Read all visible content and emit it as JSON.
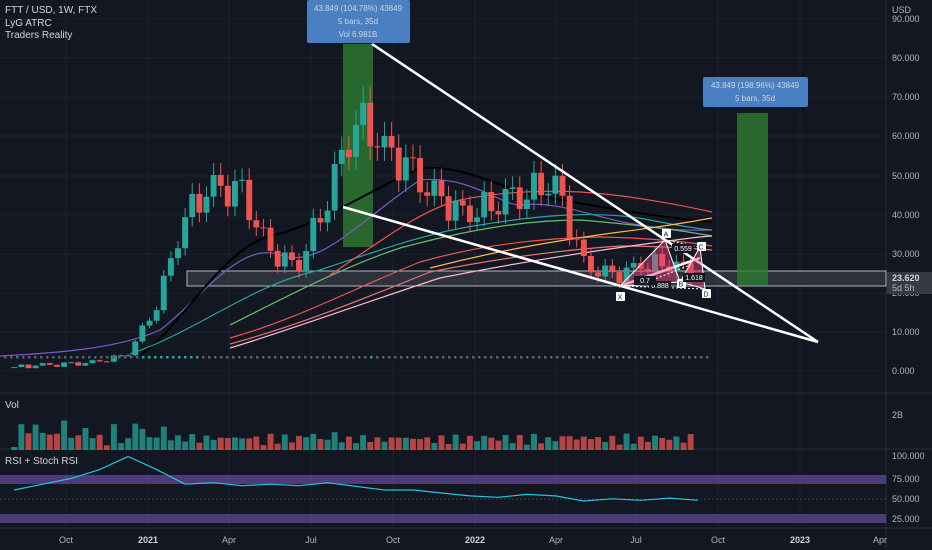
{
  "header": {
    "symbol": "FTT / USD, 1W, FTX",
    "indicators": [
      "LyG ATRC",
      "Traders Reality"
    ],
    "currency": "USD"
  },
  "colors": {
    "bg": "#131722",
    "up": "#26a69a",
    "down": "#ef5350",
    "label_box": "#4a7fc1",
    "measure_fill": "#2e7d32"
  },
  "price_axis": {
    "ticks": [
      "0.000",
      "10.000",
      "20.000",
      "30.000",
      "40.000",
      "50.000",
      "60.000",
      "70.000",
      "80.000",
      "90.000"
    ],
    "last_price": "23.620",
    "countdown": "5d 5h"
  },
  "time_axis": {
    "labels": [
      "Oct",
      "2021",
      "Apr",
      "Jul",
      "Oct",
      "2022",
      "Apr",
      "Jul",
      "Oct",
      "2023",
      "Apr"
    ]
  },
  "measure_left": {
    "line1": "43.849 (104.78%) 43849",
    "line2": "5 bars, 35d",
    "line3": "Vol 6.981B"
  },
  "measure_right": {
    "line1": "43.849 (198.96%) 43849",
    "line2": "5 bars, 35d"
  },
  "pattern": {
    "points": [
      "X",
      "A",
      "B",
      "C",
      "D"
    ],
    "ratios": [
      "0.559",
      "0.888",
      "1.618",
      "0.7"
    ]
  },
  "volume_panel": {
    "label": "Vol",
    "tick": "2B"
  },
  "rsi_panel": {
    "label": "RSI + Stoch RSI",
    "ticks": [
      "100.000",
      "75.000",
      "50.000",
      "25.000"
    ]
  },
  "chart_data": {
    "type": "candlestick",
    "title": "FTT / USD, 1W, FTX",
    "price_range": [
      0,
      95
    ],
    "series": [
      {
        "name": "FTT / USD",
        "x": [
          "2020-09",
          "2020-10",
          "2020-11",
          "2020-12",
          "2021-01",
          "2021-02",
          "2021-03",
          "2021-04",
          "2021-05",
          "2021-06",
          "2021-07",
          "2021-08",
          "2021-09",
          "2021-10",
          "2021-11",
          "2021-12",
          "2022-01",
          "2022-02",
          "2022-03",
          "2022-04",
          "2022-05",
          "2022-06",
          "2022-07",
          "2022-08",
          "2022-09"
        ],
        "close": [
          1,
          1.5,
          1.7,
          2.4,
          4.5,
          17,
          40,
          47,
          45,
          30,
          27,
          45,
          65,
          57,
          50,
          43,
          40,
          44,
          46,
          48,
          27,
          24,
          27,
          28,
          24.5
        ]
      }
    ],
    "rsi_range": [
      0,
      100
    ],
    "rsi": [
      52,
      60,
      68,
      80,
      98,
      80,
      60,
      62,
      58,
      60,
      58,
      62,
      57,
      52,
      52,
      48,
      44,
      42,
      46,
      44,
      37,
      40,
      38,
      41,
      38
    ]
  }
}
